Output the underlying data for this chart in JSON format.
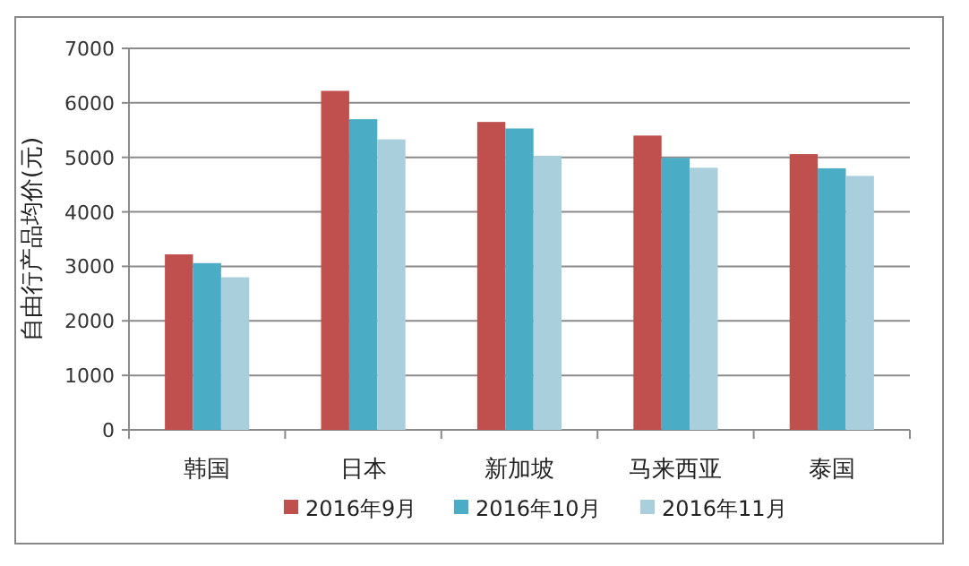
{
  "chart_data": {
    "type": "bar",
    "ylabel": "自由行产品均价(元)",
    "categories": [
      "韩国",
      "日本",
      "新加坡",
      "马来西亚",
      "泰国"
    ],
    "series": [
      {
        "name": "2016年9月",
        "color": "#c0504d",
        "values": [
          3220,
          6220,
          5650,
          5400,
          5060
        ]
      },
      {
        "name": "2016年10月",
        "color": "#4bacc6",
        "values": [
          3060,
          5700,
          5530,
          4990,
          4800
        ]
      },
      {
        "name": "2016年11月",
        "color": "#a9cfdc",
        "values": [
          2800,
          5330,
          5030,
          4810,
          4660
        ]
      }
    ],
    "ylim": [
      0,
      7000
    ],
    "yticks": [
      0,
      1000,
      2000,
      3000,
      4000,
      5000,
      6000,
      7000
    ],
    "grid": "y",
    "legend": "bottom"
  }
}
